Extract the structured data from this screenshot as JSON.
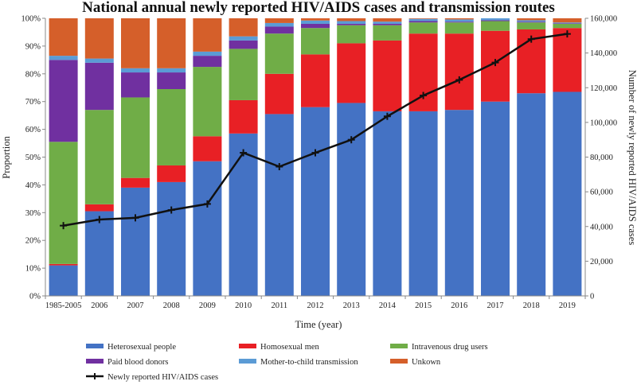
{
  "chart_data": {
    "type": "stacked-bar-with-line",
    "title": "National annual newly reported HIV/AIDS cases and transmission routes",
    "xlabel": "Time (year)",
    "ylabel_left": "Proportion",
    "ylabel_right": "Number of newly reported HIV/AIDS cases",
    "categories": [
      "1985-2005",
      "2006",
      "2007",
      "2008",
      "2009",
      "2010",
      "2011",
      "2012",
      "2013",
      "2014",
      "2015",
      "2016",
      "2017",
      "2018",
      "2019"
    ],
    "left_ticks": [
      "0%",
      "10%",
      "20%",
      "30%",
      "40%",
      "50%",
      "60%",
      "70%",
      "80%",
      "90%",
      "100%"
    ],
    "right_ticks": [
      "0",
      "20,000",
      "40,000",
      "60,000",
      "80,000",
      "100,000",
      "120,000",
      "140,000",
      "160,000"
    ],
    "ylim_left": [
      0,
      100
    ],
    "ylim_right": [
      0,
      160000
    ],
    "series": [
      {
        "name": "Heterosexual people",
        "color": "#4472c4",
        "values": [
          11.0,
          30.5,
          39.0,
          41.0,
          48.5,
          58.5,
          65.5,
          68.0,
          69.5,
          66.5,
          66.5,
          67.0,
          70.0,
          73.0,
          73.5
        ]
      },
      {
        "name": "Homosexual men",
        "color": "#e82025",
        "values": [
          0.5,
          2.5,
          3.5,
          6.0,
          9.0,
          12.0,
          14.5,
          19.0,
          21.5,
          25.5,
          28.0,
          27.5,
          25.5,
          23.0,
          23.0
        ]
      },
      {
        "name": "Intravenous drug users",
        "color": "#70ad47",
        "values": [
          44.0,
          34.0,
          29.0,
          27.5,
          25.0,
          18.5,
          14.5,
          9.5,
          6.5,
          5.5,
          4.0,
          4.0,
          3.5,
          2.5,
          1.5
        ]
      },
      {
        "name": "Paid blood donors",
        "color": "#7030a0",
        "values": [
          29.5,
          17.0,
          9.0,
          6.0,
          4.0,
          3.0,
          2.5,
          1.5,
          0.5,
          0.5,
          0.5,
          0.3,
          0.3,
          0.3,
          0.2
        ]
      },
      {
        "name": "Mother-to-child transmission",
        "color": "#5b9bd5",
        "values": [
          1.5,
          1.5,
          1.5,
          1.5,
          1.5,
          1.5,
          1.3,
          1.2,
          1.0,
          0.8,
          0.8,
          0.8,
          0.7,
          0.5,
          0.3
        ]
      },
      {
        "name": "Unkown",
        "color": "#d55f2a",
        "values": [
          13.5,
          14.5,
          18.0,
          18.0,
          12.0,
          6.5,
          1.7,
          0.8,
          1.0,
          1.2,
          0.2,
          0.4,
          0.0,
          0.7,
          1.5
        ]
      }
    ],
    "line": {
      "name": "Newly reported HIV/AIDS cases",
      "color": "#111111",
      "values": [
        40500,
        44000,
        45000,
        49500,
        53000,
        82500,
        74500,
        82500,
        90000,
        103500,
        115500,
        124500,
        134500,
        148000,
        151000
      ]
    },
    "legend_position": "bottom"
  }
}
